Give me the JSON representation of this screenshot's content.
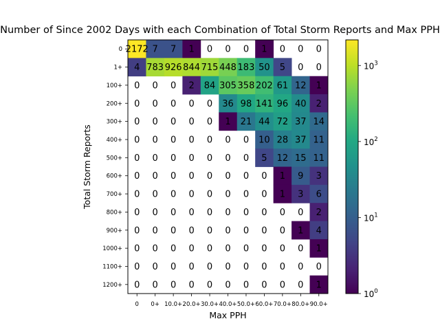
{
  "chart_data": {
    "type": "heatmap",
    "title": "Number of Since 2002 Days with each Combination of Total Storm Reports and Max PPH",
    "xlabel": "Max PPH",
    "ylabel": "Total Storm Reports",
    "x_categories": [
      "0",
      "0+",
      "10.0+",
      "20.0+",
      "30.0+",
      "40.0+",
      "50.0+",
      "60.0+",
      "70.0+",
      "80.0+",
      "90.0+"
    ],
    "y_categories": [
      "0",
      "1+",
      "100+",
      "200+",
      "300+",
      "400+",
      "500+",
      "600+",
      "700+",
      "800+",
      "900+",
      "1000+",
      "1100+",
      "1200+"
    ],
    "values": [
      [
        2172,
        7,
        7,
        1,
        0,
        0,
        0,
        1,
        0,
        0,
        0
      ],
      [
        4,
        783,
        926,
        844,
        715,
        448,
        183,
        50,
        5,
        0,
        0
      ],
      [
        0,
        0,
        0,
        2,
        84,
        305,
        358,
        202,
        61,
        12,
        1
      ],
      [
        0,
        0,
        0,
        0,
        0,
        36,
        98,
        141,
        96,
        40,
        2
      ],
      [
        0,
        0,
        0,
        0,
        0,
        1,
        21,
        44,
        72,
        37,
        14
      ],
      [
        0,
        0,
        0,
        0,
        0,
        0,
        0,
        10,
        28,
        37,
        11
      ],
      [
        0,
        0,
        0,
        0,
        0,
        0,
        0,
        5,
        12,
        15,
        11
      ],
      [
        0,
        0,
        0,
        0,
        0,
        0,
        0,
        0,
        1,
        9,
        3
      ],
      [
        0,
        0,
        0,
        0,
        0,
        0,
        0,
        0,
        1,
        3,
        6
      ],
      [
        0,
        0,
        0,
        0,
        0,
        0,
        0,
        0,
        0,
        0,
        2
      ],
      [
        0,
        0,
        0,
        0,
        0,
        0,
        0,
        0,
        0,
        1,
        4
      ],
      [
        0,
        0,
        0,
        0,
        0,
        0,
        0,
        0,
        0,
        0,
        1
      ],
      [
        0,
        0,
        0,
        0,
        0,
        0,
        0,
        0,
        0,
        0,
        0
      ],
      [
        0,
        0,
        0,
        0,
        0,
        0,
        0,
        0,
        0,
        0,
        1
      ]
    ],
    "colormap": "viridis",
    "color_scale": "log",
    "colorbar_range": [
      1,
      2172
    ],
    "colorbar_ticks": [
      {
        "value": 1,
        "base": "10",
        "exp": "0"
      },
      {
        "value": 10,
        "base": "10",
        "exp": "1"
      },
      {
        "value": 100,
        "base": "10",
        "exp": "2"
      },
      {
        "value": 1000,
        "base": "10",
        "exp": "3"
      }
    ],
    "zero_cells": "blank",
    "grid": false
  }
}
